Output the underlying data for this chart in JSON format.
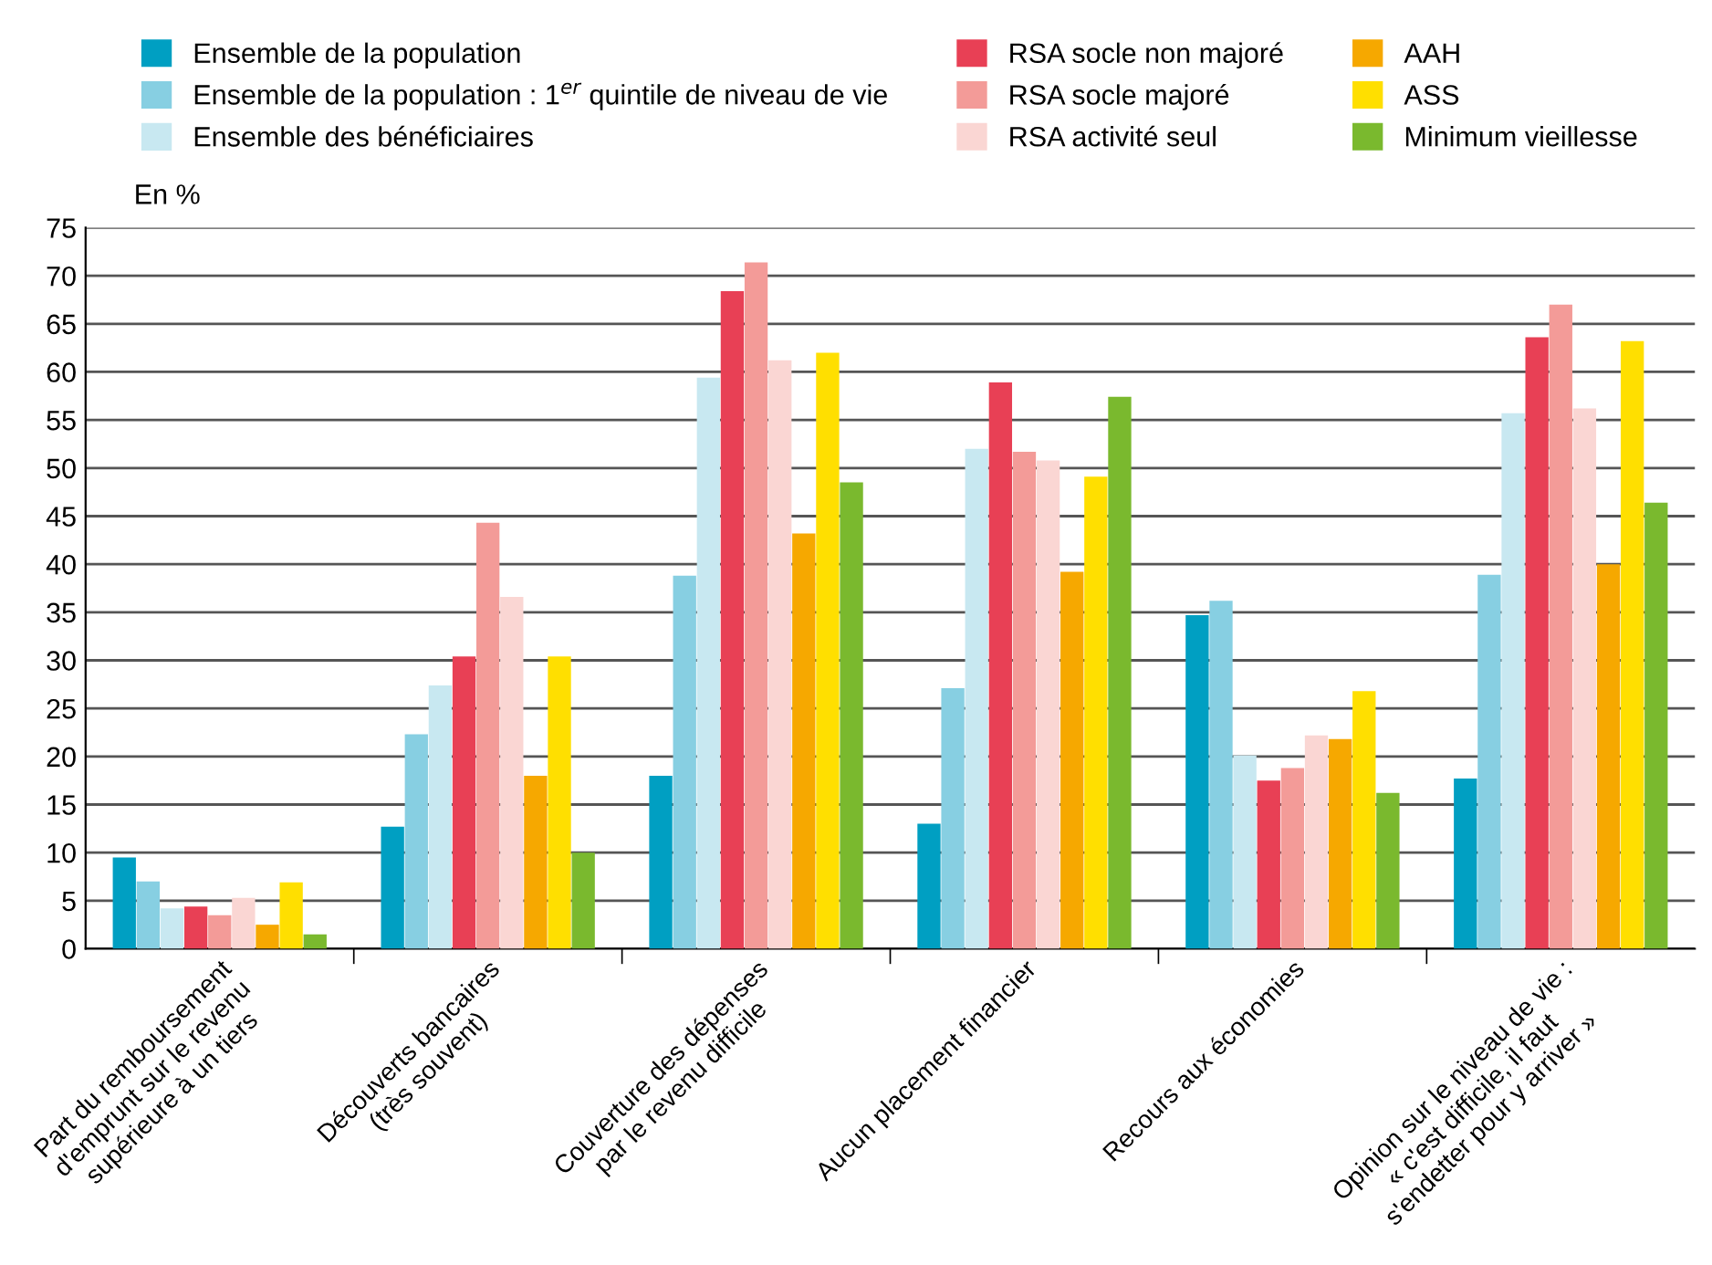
{
  "chart_data": {
    "type": "bar",
    "ylabel": "En %",
    "categories": [
      "Part du remboursement\nd'emprunt sur le revenu\nsupérieure à un tiers",
      "Découverts bancaires\n(très souvent)",
      "Couverture des dépenses\npar le revenu difficile",
      "Aucun placement financier",
      "Recours aux économies",
      "Opinion sur le niveau de vie :\n« c'est difficile, il faut\ns'endetter pour y arriver »"
    ],
    "series": [
      {
        "name": "Ensemble de la population",
        "color": "#009fc2",
        "values": [
          9.5,
          12.7,
          18,
          13,
          34.7,
          17.7
        ]
      },
      {
        "name": "Ensemble de la population : 1$^{er}$ quintile de niveau de vie",
        "color": "#87cfe2",
        "values": [
          7,
          22.3,
          38.8,
          27.1,
          36.2,
          38.9
        ]
      },
      {
        "name": "Ensemble des bénéficiaires",
        "color": "#c8e8f1",
        "values": [
          4.2,
          27.4,
          59.4,
          52,
          20.1,
          55.7
        ]
      },
      {
        "name": "RSA socle non majoré",
        "color": "#e84055",
        "values": [
          4.4,
          30.4,
          68.4,
          58.9,
          17.5,
          63.6
        ]
      },
      {
        "name": "RSA socle majoré",
        "color": "#f39b98",
        "values": [
          3.5,
          44.3,
          71.4,
          51.7,
          18.8,
          67
        ]
      },
      {
        "name": "RSA activité seul",
        "color": "#fad6d3",
        "values": [
          5.3,
          36.6,
          61.2,
          50.8,
          22.2,
          56.2
        ]
      },
      {
        "name": "AAH",
        "color": "#f6a800",
        "values": [
          2.5,
          18,
          43.2,
          39.2,
          21.8,
          40
        ]
      },
      {
        "name": "ASS",
        "color": "#ffdf00",
        "values": [
          6.9,
          30.4,
          62,
          49.1,
          26.8,
          63.2
        ]
      },
      {
        "name": "Minimum vieillesse",
        "color": "#7ab92e",
        "values": [
          1.5,
          10,
          48.5,
          57.4,
          16.2,
          46.4
        ]
      }
    ],
    "ylim": [
      0,
      75
    ],
    "yticks": [
      0,
      5,
      10,
      15,
      20,
      25,
      30,
      35,
      40,
      45,
      50,
      55,
      60,
      65,
      70,
      75
    ],
    "grid": "y",
    "legend": "top"
  }
}
